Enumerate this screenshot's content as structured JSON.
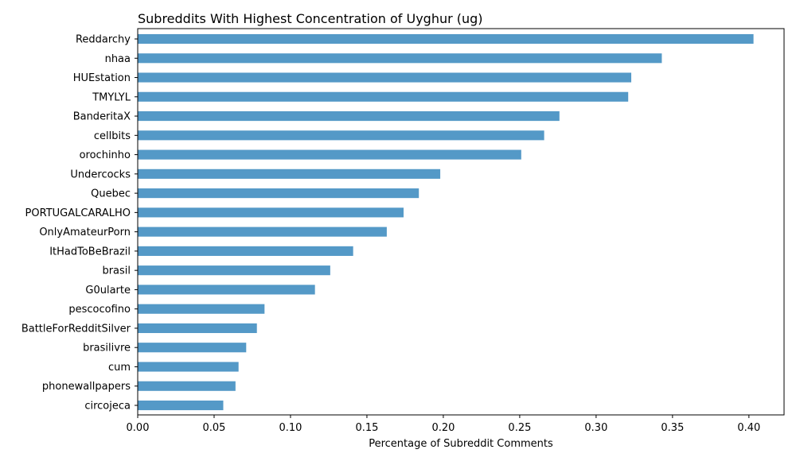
{
  "chart_data": {
    "type": "bar",
    "orientation": "horizontal",
    "title": "Subreddits With Highest Concentration of Uyghur (ug)",
    "xlabel": "Percentage of Subreddit Comments",
    "ylabel": "",
    "xlim": [
      0,
      0.423
    ],
    "xticks": [
      "0.00",
      "0.05",
      "0.10",
      "0.15",
      "0.20",
      "0.25",
      "0.30",
      "0.35",
      "0.40"
    ],
    "bar_color": "#5499c7",
    "categories": [
      "Reddarchy",
      "nhaa",
      "HUEstation",
      "TMYLYL",
      "BanderitaX",
      "cellbits",
      "orochinho",
      "Undercocks",
      "Quebec",
      "PORTUGALCARALHO",
      "OnlyAmateurPorn",
      "ItHadToBeBrazil",
      "brasil",
      "G0ularte",
      "pescocofino",
      "BattleForRedditSilver",
      "brasilivre",
      "cum",
      "phonewallpapers",
      "circojeca"
    ],
    "values": [
      0.403,
      0.343,
      0.323,
      0.321,
      0.276,
      0.266,
      0.251,
      0.198,
      0.184,
      0.174,
      0.163,
      0.141,
      0.126,
      0.116,
      0.083,
      0.078,
      0.071,
      0.066,
      0.064,
      0.056
    ]
  }
}
